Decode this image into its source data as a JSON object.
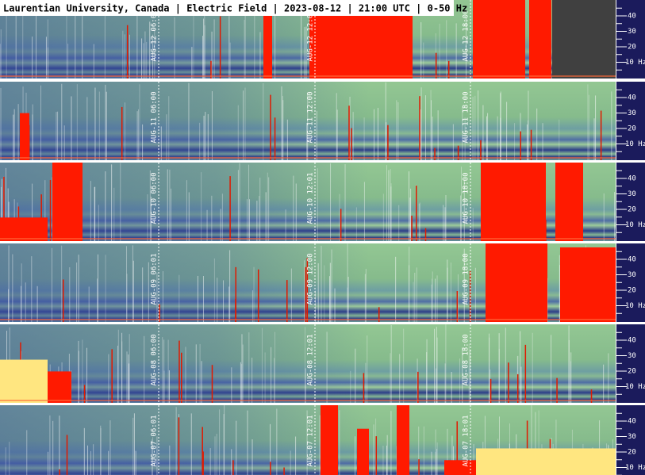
{
  "chart_data": {
    "type": "spectrogram",
    "title": "Laurentian University, Canada | Electric Field | 2023-08-12 | 21:00 UTC | 0-50 Hz",
    "ylim": [
      0,
      50
    ],
    "yticks": [
      {
        "value": 10,
        "label": "10 Hz"
      },
      20,
      30,
      40
    ],
    "panels": [
      {
        "time_labels": [
          "AUG-12 06:01",
          "AUG-12 12:01",
          "AUG-12 18:00"
        ]
      },
      {
        "time_labels": [
          "AUG-11 06:00",
          "AUG-11 12:00",
          "AUG-11 18:00"
        ]
      },
      {
        "time_labels": [
          "AUG-10 06:00",
          "AUG-10 12:01",
          "AUG-10 18:00"
        ]
      },
      {
        "time_labels": [
          "AUG-09 06:01",
          "AUG-09 12:00",
          "AUG-09 18:00"
        ]
      },
      {
        "time_labels": [
          "AUG-08 06:00",
          "AUG-08 12:01",
          "AUG-08 18:00"
        ]
      },
      {
        "time_labels": [
          "AUG-07 06:01",
          "AUG-07 12:01",
          "AUG-07 18:01"
        ]
      }
    ]
  }
}
